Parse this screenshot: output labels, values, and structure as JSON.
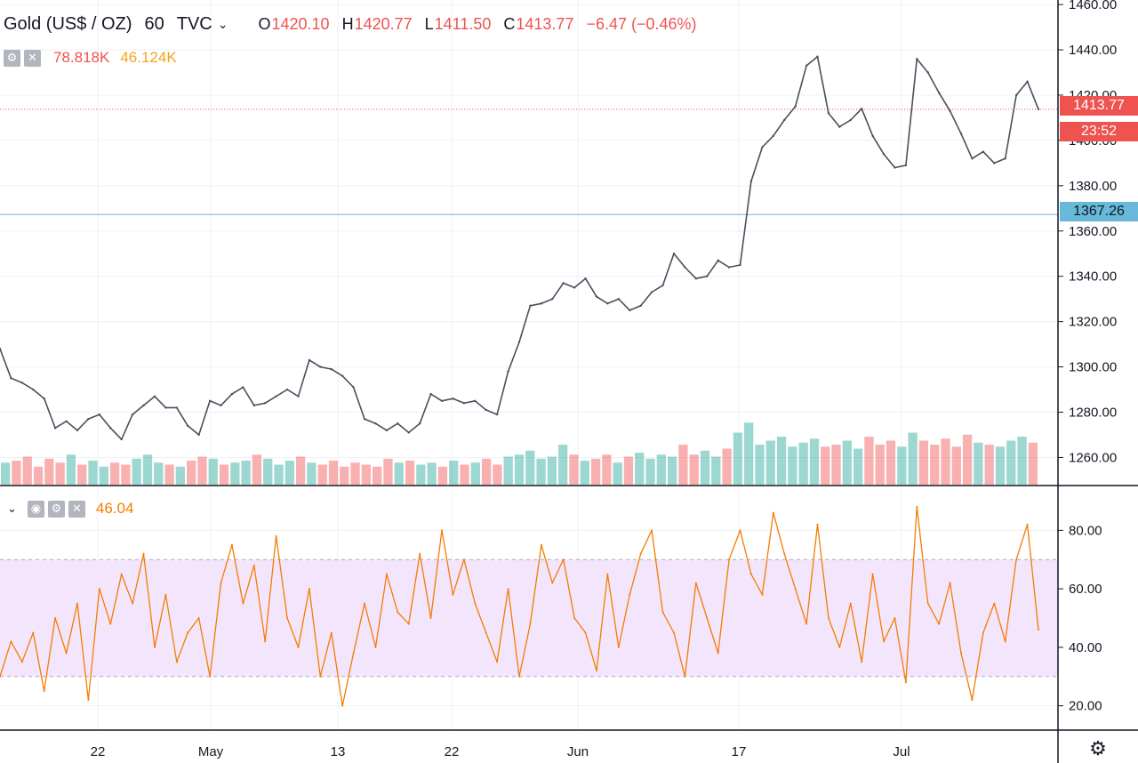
{
  "legend": {
    "symbol": "Gold (US$ / OZ)",
    "interval": "60",
    "source": "TVC",
    "ohlc": {
      "o_label": "O",
      "o": "1420.10",
      "h_label": "H",
      "h": "1420.77",
      "l_label": "L",
      "l": "1411.50",
      "c_label": "C",
      "c": "1413.77",
      "change": "−6.47 (−0.46%)"
    }
  },
  "volume_legend": {
    "value1": "78.818K",
    "value2": "46.124K"
  },
  "rsi_legend": {
    "value": "46.04"
  },
  "price_tags": {
    "last": "1413.77",
    "countdown": "23:52",
    "line_level": "1367.26"
  },
  "colors": {
    "up": "#26a69a",
    "down": "#ef5350",
    "rsi_line": "#f57c00",
    "rsi_band": "#f3e6fc",
    "hline": "#67b8d9",
    "last_price": "#ef5350"
  },
  "chart_data": [
    {
      "type": "line",
      "title": "Gold (US$ / OZ), 60, TVC",
      "ylim": [
        1248,
        1462
      ],
      "y_ticks": [
        "1260.00",
        "1280.00",
        "1300.00",
        "1320.00",
        "1340.00",
        "1360.00",
        "1380.00",
        "1400.00",
        "1420.00",
        "1440.00",
        "1460.00"
      ],
      "x_ticks": [
        "22",
        "May",
        "13",
        "22",
        "Jun",
        "17",
        "Jul"
      ],
      "horizontal_line": 1367.26,
      "last_price": 1413.77,
      "series": [
        {
          "values": [
            1308,
            1295,
            1293,
            1290,
            1286,
            1273,
            1276,
            1272,
            1277,
            1279,
            1273,
            1268,
            1279,
            1283,
            1287,
            1282,
            1282,
            1274,
            1270,
            1285,
            1283,
            1288,
            1291,
            1283,
            1284,
            1287,
            1290,
            1287,
            1303,
            1300,
            1299,
            1296,
            1291,
            1277,
            1275,
            1272,
            1275,
            1271,
            1275,
            1288,
            1285,
            1286,
            1284,
            1285,
            1281,
            1279,
            1298,
            1311,
            1327,
            1328,
            1330,
            1337,
            1335,
            1339,
            1331,
            1328,
            1330,
            1325,
            1327,
            1333,
            1336,
            1350,
            1344,
            1339,
            1340,
            1347,
            1344,
            1345,
            1382,
            1397,
            1402,
            1409,
            1415,
            1433,
            1437,
            1412,
            1406,
            1409,
            1414,
            1402,
            1394,
            1388,
            1389,
            1436,
            1430,
            1421,
            1413,
            1403,
            1392,
            1395,
            1390,
            1392,
            1420,
            1426,
            1413.77
          ]
        }
      ]
    },
    {
      "type": "bar",
      "title": "Volume",
      "series": [
        {
          "name": "volume",
          "values": [
            22,
            24,
            28,
            18,
            26,
            22,
            30,
            20,
            24,
            18,
            22,
            20,
            26,
            30,
            22,
            20,
            18,
            24,
            28,
            26,
            20,
            22,
            24,
            30,
            26,
            20,
            24,
            28,
            22,
            20,
            24,
            18,
            22,
            20,
            18,
            26,
            22,
            24,
            20,
            22,
            18,
            24,
            20,
            22,
            26,
            20,
            28,
            30,
            34,
            26,
            28,
            40,
            30,
            24,
            26,
            30,
            22,
            28,
            32,
            26,
            30,
            28,
            40,
            30,
            34,
            28,
            36,
            52,
            62,
            40,
            44,
            48,
            38,
            42,
            46,
            38,
            40,
            44,
            36,
            48,
            40,
            44,
            38,
            52,
            44,
            40,
            46,
            38,
            50,
            42,
            40,
            38,
            44,
            48,
            42
          ]
        }
      ]
    },
    {
      "type": "line",
      "title": "RSI",
      "ylim": [
        12,
        95
      ],
      "y_ticks": [
        "20.00",
        "40.00",
        "60.00",
        "80.00"
      ],
      "band": [
        30,
        70
      ],
      "series": [
        {
          "name": "RSI",
          "values": [
            30,
            42,
            35,
            45,
            25,
            50,
            38,
            55,
            22,
            60,
            48,
            65,
            55,
            72,
            40,
            58,
            35,
            45,
            50,
            30,
            62,
            75,
            55,
            68,
            42,
            78,
            50,
            40,
            60,
            30,
            45,
            20,
            38,
            55,
            40,
            65,
            52,
            48,
            72,
            50,
            80,
            58,
            70,
            55,
            45,
            35,
            60,
            30,
            48,
            75,
            62,
            70,
            50,
            45,
            32,
            65,
            40,
            58,
            72,
            80,
            52,
            45,
            30,
            62,
            50,
            38,
            70,
            80,
            65,
            58,
            86,
            72,
            60,
            48,
            82,
            50,
            40,
            55,
            35,
            65,
            42,
            50,
            28,
            88,
            55,
            48,
            62,
            38,
            22,
            45,
            55,
            42,
            70,
            82,
            46.04
          ]
        }
      ]
    }
  ]
}
